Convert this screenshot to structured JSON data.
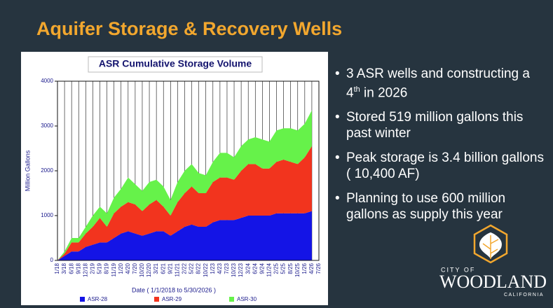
{
  "title": "Aquifer Storage & Recovery Wells",
  "chart_data": {
    "type": "stacked-area",
    "title": "ASR Cumulative Storage Volume",
    "y_label": "Million Gallons",
    "x_label": "Date  ( 1/1/2018  to  5/30/2026 )",
    "categories": [
      "1/18",
      "3/18",
      "6/18",
      "9/18",
      "12/18",
      "2/19",
      "5/19",
      "8/19",
      "11/19",
      "1/20",
      "4/20",
      "7/20",
      "10/20",
      "12/20",
      "3/21",
      "6/21",
      "9/21",
      "11/21",
      "2/22",
      "5/22",
      "8/22",
      "10/22",
      "1/23",
      "4/23",
      "7/23",
      "10/23",
      "12/23",
      "3/24",
      "6/24",
      "9/24",
      "11/24",
      "2/25",
      "5/25",
      "8/25",
      "10/25",
      "1/26",
      "4/26",
      "7/26"
    ],
    "series": [
      {
        "name": "ASR-28",
        "color": "#1414e6",
        "values": [
          0,
          100,
          200,
          200,
          300,
          350,
          400,
          400,
          500,
          600,
          650,
          600,
          550,
          600,
          650,
          650,
          550,
          650,
          750,
          800,
          750,
          750,
          850,
          900,
          900,
          900,
          950,
          1000,
          1000,
          1000,
          1000,
          1050,
          1050,
          1050,
          1050,
          1050,
          1100,
          null
        ]
      },
      {
        "name": "ASR-29",
        "color": "#f2341e",
        "values": [
          0,
          50,
          200,
          200,
          300,
          400,
          550,
          350,
          550,
          600,
          650,
          650,
          550,
          650,
          700,
          550,
          450,
          650,
          750,
          850,
          750,
          750,
          900,
          950,
          950,
          900,
          1050,
          1150,
          1150,
          1050,
          1050,
          1150,
          1200,
          1150,
          1100,
          1250,
          1450,
          null
        ]
      },
      {
        "name": "ASR-30",
        "color": "#66f24a",
        "values": [
          0,
          50,
          100,
          100,
          150,
          250,
          250,
          300,
          350,
          400,
          550,
          450,
          450,
          500,
          450,
          450,
          350,
          450,
          500,
          500,
          450,
          400,
          450,
          550,
          550,
          500,
          550,
          550,
          600,
          650,
          600,
          700,
          700,
          750,
          750,
          750,
          800,
          null
        ]
      }
    ],
    "ylim": [
      0,
      4000
    ],
    "yticks": [
      0,
      1000,
      2000,
      3000,
      4000
    ],
    "grid": "x"
  },
  "bullets": [
    {
      "text": "3 ASR wells and constructing a 4",
      "sup": "th",
      "tail": " in 2026"
    },
    {
      "text": "Stored 519 million gallons this past winter"
    },
    {
      "text": "Peak storage is 3.4 billion gallons ( 10,400 AF)"
    },
    {
      "text": "Planning to use 600 million gallons as supply this year"
    }
  ],
  "logo": {
    "top": "CITY OF",
    "name": "WOODLAND",
    "bottom": "CALIFORNIA"
  }
}
